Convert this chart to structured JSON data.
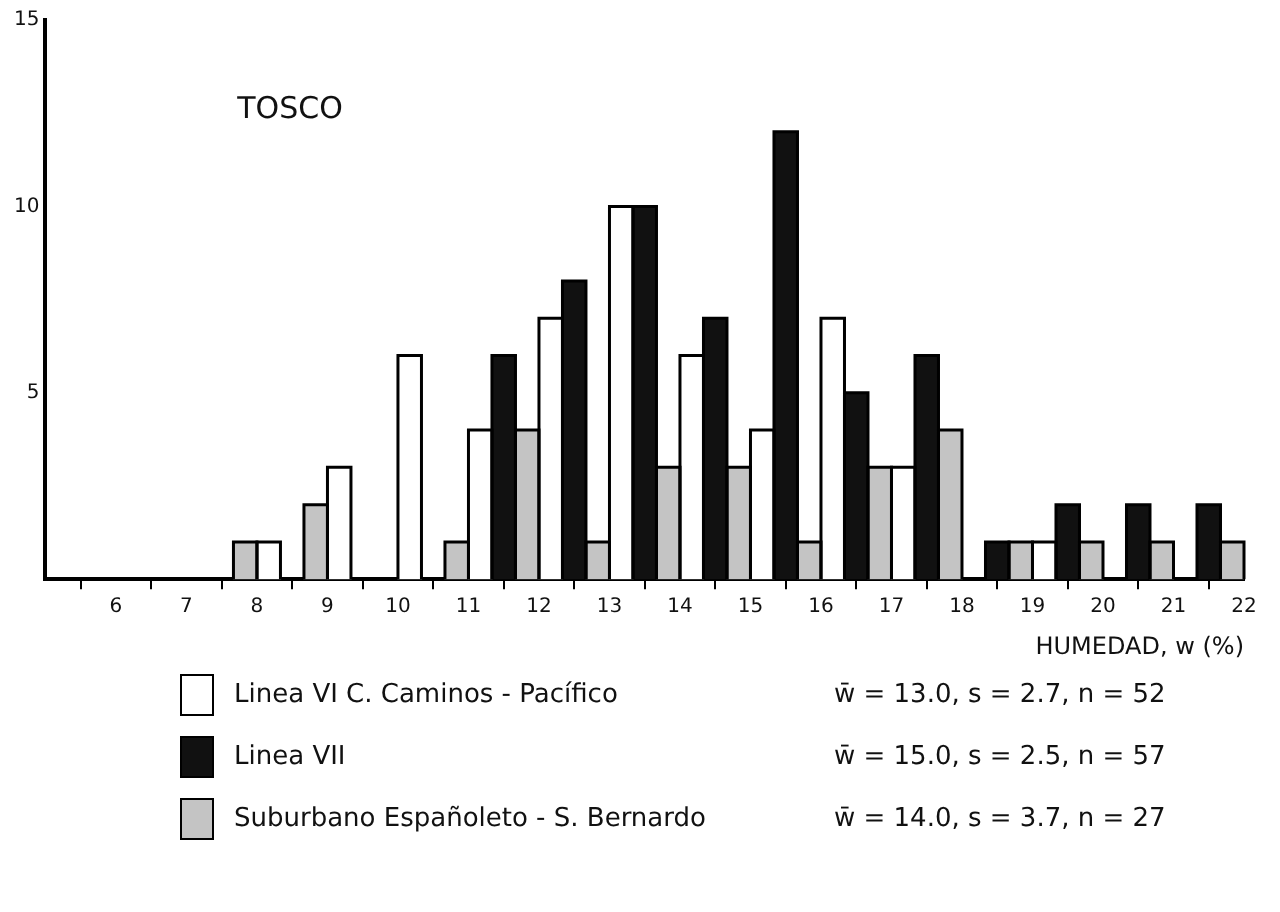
{
  "chart_data": {
    "type": "histogram",
    "title": "TOSCO",
    "xlabel": "HUMEDAD, w (%)",
    "bins": [
      5,
      6,
      7,
      8,
      9,
      10,
      11,
      12,
      13,
      14,
      15,
      16,
      17,
      18,
      19,
      20,
      21,
      22
    ],
    "series": [
      {
        "name": "Linea VI  C. Caminos - Pacífico",
        "color": "#ffffff",
        "values": [
          0,
          0,
          0,
          1,
          3,
          6,
          4,
          7,
          10,
          6,
          4,
          7,
          3,
          0,
          1,
          0,
          0
        ]
      },
      {
        "name": "Linea VII",
        "color": "#111111",
        "values": [
          0,
          0,
          0,
          0,
          0,
          0,
          6,
          8,
          10,
          7,
          12,
          5,
          6,
          1,
          2,
          2,
          2
        ]
      },
      {
        "name": "Suburbano Españoleto - S. Bernardo",
        "color": "#c4c4c4",
        "values": [
          0,
          0,
          1,
          2,
          0,
          1,
          4,
          1,
          3,
          3,
          1,
          3,
          4,
          1,
          1,
          1,
          1
        ]
      }
    ],
    "annotations": [
      "w̄ = 13.0, s = 2.7, n = 52",
      "w̄ = 15.0, s = 2.5, n = 57",
      "w̄ = 14.0, s = 3.7, n = 27"
    ],
    "xlim": [
      5,
      22
    ],
    "xticks": [
      6,
      7,
      8,
      9,
      10,
      11,
      12,
      13,
      14,
      15,
      16,
      17,
      18,
      19,
      20,
      21,
      22
    ],
    "ylim": [
      0,
      15
    ],
    "yticks": [
      5,
      10,
      15
    ],
    "grid": false,
    "legend": "bottom"
  }
}
